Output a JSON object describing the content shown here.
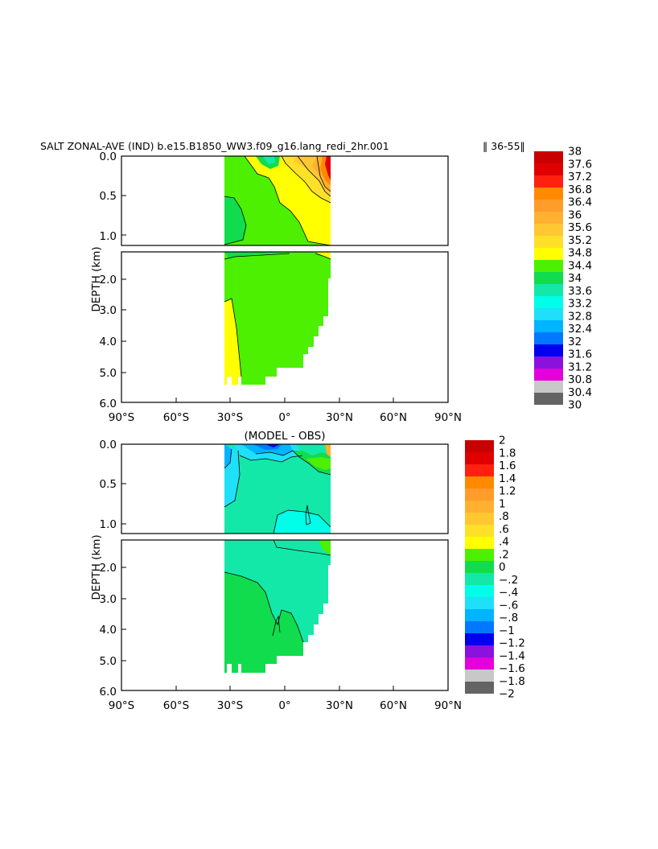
{
  "figure": {
    "title": "SALT ZONAL-AVE (IND) b.e15.B1850_WW3.f09_g16.lang_redi_2hr.001",
    "years": "‖ 36-55‖"
  },
  "chart_data": [
    {
      "type": "heatmap",
      "name": "salinity-panel",
      "title": "",
      "ylabel": "DEPTH (km)",
      "xlabel": "",
      "x_tick_labels": [
        "90°S",
        "60°S",
        "30°S",
        "0°",
        "30°N",
        "60°N",
        "90°N"
      ],
      "x_ticks": [
        -90,
        -60,
        -30,
        0,
        30,
        60,
        90
      ],
      "y_tick_labels_upper": [
        "0.0",
        "0.5",
        "1.0"
      ],
      "y_tick_labels_lower": [
        "2.0",
        "3.0",
        "4.0",
        "5.0",
        "6.0"
      ],
      "y_ticks_upper": [
        0.0,
        0.5,
        1.0
      ],
      "y_ticks_lower": [
        2.0,
        3.0,
        4.0,
        5.0,
        6.0
      ],
      "xlim": [
        -90,
        90
      ],
      "ylim_upper": [
        0,
        1.1
      ],
      "ylim_lower": [
        1.1,
        6.0
      ],
      "data_extent_lat": [
        -34,
        26
      ],
      "colorbar": {
        "labels": [
          "38",
          "37.6",
          "37.2",
          "36.8",
          "36.4",
          "36",
          "35.6",
          "35.2",
          "34.8",
          "34.4",
          "34",
          "33.6",
          "33.2",
          "32.8",
          "32.4",
          "32",
          "31.6",
          "31.2",
          "30.8",
          "30.4",
          "30"
        ],
        "colors": [
          "#c80000",
          "#e00000",
          "#ff2010",
          "#ff8a00",
          "#ff9c2a",
          "#ffb030",
          "#ffc832",
          "#ffe028",
          "#ffff00",
          "#4cf000",
          "#10dc4e",
          "#14e8a8",
          "#00ffe8",
          "#1ee0f8",
          "#00b4ff",
          "#0078ff",
          "#0000f0",
          "#8a12dc",
          "#e400dc",
          "#c8c8c8",
          "#646464"
        ]
      }
    },
    {
      "type": "heatmap",
      "name": "difference-panel",
      "title": "(MODEL - OBS)",
      "ylabel": "DEPTH (km)",
      "xlabel": "",
      "x_tick_labels": [
        "90°S",
        "60°S",
        "30°S",
        "0°",
        "30°N",
        "60°N",
        "90°N"
      ],
      "x_ticks": [
        -90,
        -60,
        -30,
        0,
        30,
        60,
        90
      ],
      "y_tick_labels_upper": [
        "0.0",
        "0.5",
        "1.0"
      ],
      "y_tick_labels_lower": [
        "2.0",
        "3.0",
        "4.0",
        "5.0",
        "6.0"
      ],
      "y_ticks_upper": [
        0.0,
        0.5,
        1.0
      ],
      "y_ticks_lower": [
        2.0,
        3.0,
        4.0,
        5.0,
        6.0
      ],
      "xlim": [
        -90,
        90
      ],
      "ylim_upper": [
        0,
        1.1
      ],
      "ylim_lower": [
        1.1,
        6.0
      ],
      "data_extent_lat": [
        -34,
        26
      ],
      "colorbar": {
        "labels": [
          "2",
          "1.8",
          "1.6",
          "1.4",
          "1.2",
          "1",
          ".8",
          ".6",
          ".4",
          ".2",
          "0",
          "−.2",
          "−.4",
          "−.6",
          "−.8",
          "−1",
          "−1.2",
          "−1.4",
          "−1.6",
          "−1.8",
          "−2"
        ],
        "colors": [
          "#c80000",
          "#e00000",
          "#ff2010",
          "#ff8a00",
          "#ff9c2a",
          "#ffb030",
          "#ffc832",
          "#ffe028",
          "#ffff00",
          "#4cf000",
          "#10dc4e",
          "#14e8a8",
          "#00ffe8",
          "#1ee0f8",
          "#00b4ff",
          "#0078ff",
          "#0000f0",
          "#8a12dc",
          "#e400dc",
          "#c8c8c8",
          "#646464"
        ]
      }
    }
  ]
}
